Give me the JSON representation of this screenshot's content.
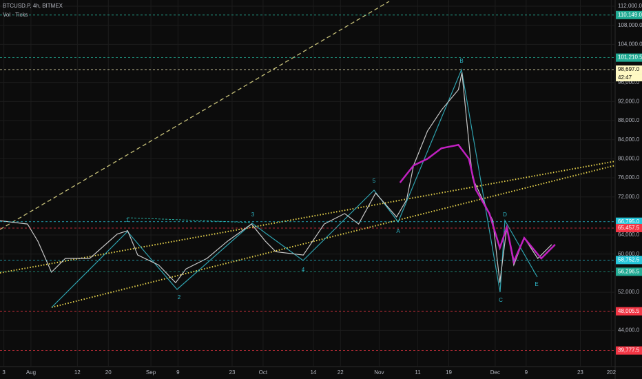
{
  "chart_data": {
    "type": "line",
    "header": "BTCUSD.P, 4h, BITMEX",
    "indicator": "Vol · Ticks",
    "xlim": [
      -8,
      151
    ],
    "ylim": [
      36400,
      113300
    ],
    "xticks": [
      {
        "value": -7,
        "label": "3"
      },
      {
        "value": 0,
        "label": "Aug"
      },
      {
        "value": 12,
        "label": "12"
      },
      {
        "value": 20,
        "label": "20"
      },
      {
        "value": 31,
        "label": "Sep"
      },
      {
        "value": 38,
        "label": "9"
      },
      {
        "value": 52,
        "label": "23"
      },
      {
        "value": 60,
        "label": "Oct"
      },
      {
        "value": 73,
        "label": "14"
      },
      {
        "value": 80,
        "label": "22"
      },
      {
        "value": 90,
        "label": "Nov"
      },
      {
        "value": 100,
        "label": "11"
      },
      {
        "value": 108,
        "label": "19"
      },
      {
        "value": 120,
        "label": "Dec"
      },
      {
        "value": 128,
        "label": "9"
      },
      {
        "value": 142,
        "label": "23"
      },
      {
        "value": 150,
        "label": "202"
      }
    ],
    "yticks": [
      {
        "value": 112000,
        "label": "112,000.0"
      },
      {
        "value": 108000,
        "label": "108,000.0"
      },
      {
        "value": 104000,
        "label": "104,000.0"
      },
      {
        "value": 96000,
        "label": "96,000.0"
      },
      {
        "value": 92000,
        "label": "92,000.0"
      },
      {
        "value": 88000,
        "label": "88,000.0"
      },
      {
        "value": 84000,
        "label": "84,000.0"
      },
      {
        "value": 80000,
        "label": "80,000.0"
      },
      {
        "value": 76000,
        "label": "76,000.0"
      },
      {
        "value": 72000,
        "label": "72,000.0"
      },
      {
        "value": 64000,
        "label": "64,000.0"
      },
      {
        "value": 60000,
        "label": "60,000.0"
      },
      {
        "value": 52000,
        "label": "52,000.0"
      },
      {
        "value": 44000,
        "label": "44,000.0"
      }
    ],
    "grid": true,
    "series": [
      {
        "color": "#c8c8c8",
        "x": [
          -8,
          -0.9,
          1.8,
          5.3,
          8.9,
          15.2,
          22.3,
          25,
          27.6,
          33,
          37.4,
          40.1,
          45.5,
          50.8,
          57,
          60.6,
          63.3,
          70.4,
          75.8,
          81.1,
          84.7,
          89.1,
          94.5,
          97.1,
          98.9,
          102.5,
          106.1,
          110.5,
          111.4,
          114.1,
          116.8,
          119.4,
          121.2,
          123,
          124.8,
          127.5,
          131,
          134.6
        ],
        "values": [
          67000,
          66300,
          62700,
          56200,
          59100,
          59100,
          64200,
          64900,
          59800,
          57700,
          54000,
          56900,
          59100,
          62700,
          66300,
          62700,
          60500,
          59800,
          66300,
          68500,
          66300,
          72800,
          67800,
          71400,
          78600,
          85800,
          90200,
          94500,
          98100,
          76000,
          71400,
          67000,
          54000,
          65600,
          57700,
          63400,
          59100,
          62000
        ]
      },
      {
        "color": "#c020c0",
        "x": [
          95.4,
          98.9,
          102.5,
          106.1,
          110.5,
          113.2,
          115,
          118.5,
          121.2,
          123,
          124.8,
          127.5,
          131.9,
          135.5
        ],
        "values": [
          75000,
          78600,
          80000,
          82200,
          82900,
          80000,
          73500,
          68500,
          61300,
          65600,
          58400,
          63400,
          59100,
          62000
        ]
      }
    ],
    "levels": [
      {
        "value": 110149,
        "label": "110,149.0",
        "color": "#22ab94"
      },
      {
        "value": 101210.5,
        "label": "101,210.5",
        "color": "#22ab94"
      },
      {
        "value": 66795,
        "label": "66,795.0",
        "color": "#26c6da"
      },
      {
        "value": 65457.5,
        "label": "65,457.5",
        "color": "#f23645"
      },
      {
        "value": 58752.5,
        "label": "58,752.5",
        "color": "#26c6da"
      },
      {
        "value": 56296.5,
        "label": "56,296.5",
        "color": "#22ab94"
      },
      {
        "value": 48005.5,
        "label": "48,005.5",
        "color": "#f23645"
      },
      {
        "value": 39777.5,
        "label": "39,777.5",
        "color": "#f23645"
      }
    ],
    "last_price": {
      "value": 98697,
      "label": "98,697.0",
      "countdown": "42:47",
      "color": "#fff9c4"
    },
    "wave_labels": [
      "1",
      "2",
      "3",
      "4",
      "5",
      "A",
      "B",
      "C",
      "D",
      "E"
    ]
  }
}
